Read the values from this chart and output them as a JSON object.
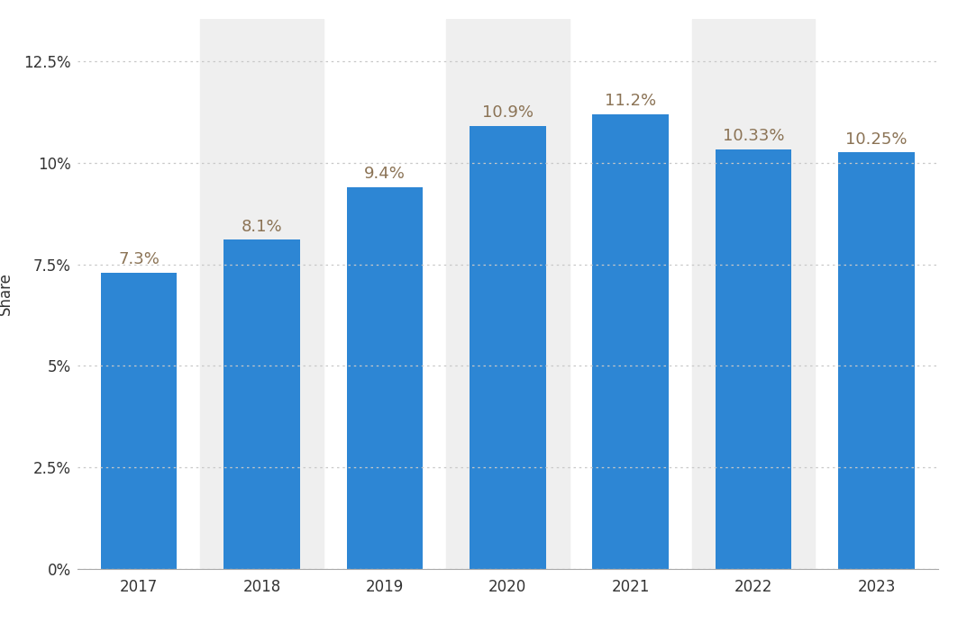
{
  "years": [
    "2017",
    "2018",
    "2019",
    "2020",
    "2021",
    "2022",
    "2023"
  ],
  "values": [
    7.3,
    8.1,
    9.4,
    10.9,
    11.2,
    10.33,
    10.25
  ],
  "labels": [
    "7.3%",
    "8.1%",
    "9.4%",
    "10.9%",
    "11.2%",
    "10.33%",
    "10.25%"
  ],
  "bar_color": "#2d86d4",
  "bar_width": 0.62,
  "background_color": "#ffffff",
  "alternate_bg_color": "#efefef",
  "shade_indices": [
    1,
    3,
    5
  ],
  "ylabel": "Share",
  "ylim": [
    0,
    13.54
  ],
  "yticks": [
    0,
    2.5,
    5.0,
    7.5,
    10.0,
    12.5
  ],
  "ytick_labels": [
    "0%",
    "2.5%",
    "5%",
    "7.5%",
    "10%",
    "12.5%"
  ],
  "grid_color": "#c8c8c8",
  "label_color": "#8b7355",
  "label_fontsize": 13,
  "axis_fontsize": 12,
  "ylabel_fontsize": 12
}
